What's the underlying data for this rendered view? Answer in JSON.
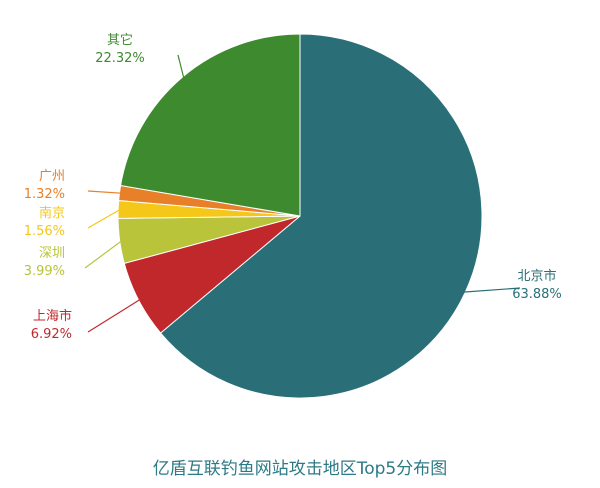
{
  "chart_data": {
    "type": "pie",
    "title": "亿盾互联钓鱼网站攻击地区Top5分布图",
    "slices": [
      {
        "label": "北京市",
        "pct_label": "63.88%",
        "value": 63.88,
        "color": "#2a6f78"
      },
      {
        "label": "上海市",
        "pct_label": "6.92%",
        "value": 6.92,
        "color": "#c0282c"
      },
      {
        "label": "深圳",
        "pct_label": "3.99%",
        "value": 3.99,
        "color": "#b9c43a"
      },
      {
        "label": "南京",
        "pct_label": "1.56%",
        "value": 1.56,
        "color": "#f5c719"
      },
      {
        "label": "广州",
        "pct_label": "1.32%",
        "value": 1.32,
        "color": "#e8802a"
      },
      {
        "label": "其它",
        "pct_label": "22.32%",
        "value": 22.32,
        "color": "#3d8b2e"
      }
    ]
  }
}
